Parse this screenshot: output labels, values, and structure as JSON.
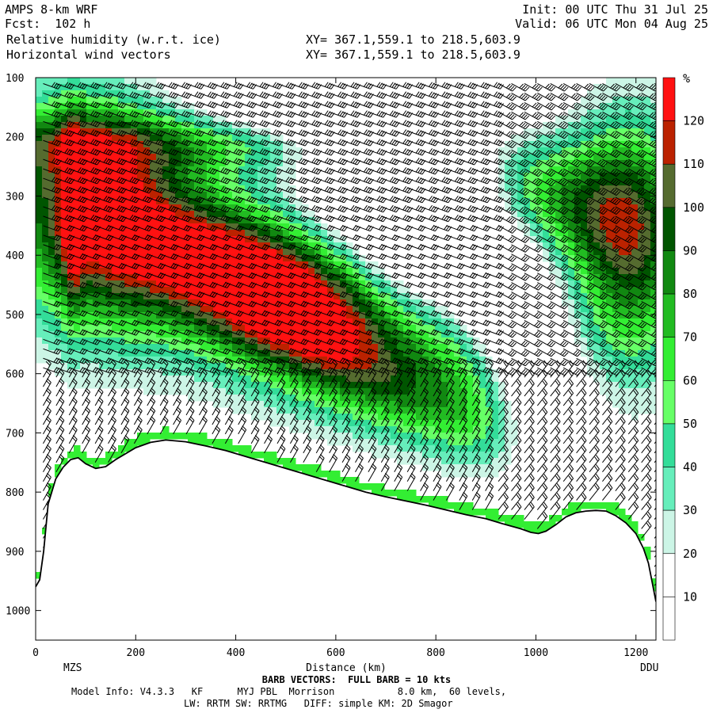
{
  "header": {
    "model": "AMPS 8-km WRF",
    "fcst": "Fcst:  102 h",
    "field1": "Relative humidity (w.r.t. ice)",
    "field2": "Horizontal wind vectors",
    "xy1": "XY= 367.1,559.1 to 218.5,603.9",
    "xy2": "XY= 367.1,559.1 to 218.5,603.9",
    "init": "Init: 00 UTC Thu 31 Jul 25",
    "valid": "Valid: 06 UTC Mon 04 Aug 25"
  },
  "footer": {
    "barb": "BARB VECTORS:  FULL BARB = 10 kts",
    "model_info": "Model Info: V4.3.3   KF      MYJ PBL  Morrison           8.0 km,  60 levels,",
    "physics": "LW: RRTM SW: RRTMG   DIFF: simple KM: 2D Smagor"
  },
  "chart_data": {
    "type": "heatmap",
    "xlabel": "Distance (km)",
    "ylabel": "",
    "x_range": [
      0,
      1240
    ],
    "y_range": [
      100,
      1050
    ],
    "y_inverted": true,
    "x_ticks": [
      "0",
      "200",
      "400",
      "600",
      "800",
      "1000",
      "1200"
    ],
    "x_tick_values": [
      0,
      200,
      400,
      600,
      800,
      1000,
      1200
    ],
    "y_ticks": [
      "100",
      "200",
      "300",
      "400",
      "500",
      "600",
      "700",
      "800",
      "900",
      "1000"
    ],
    "y_tick_values": [
      100,
      200,
      300,
      400,
      500,
      600,
      700,
      800,
      900,
      1000
    ],
    "start_station": "MZS",
    "end_station": "DDU",
    "colorbar": {
      "unit": "%",
      "levels": [
        "10",
        "20",
        "30",
        "40",
        "50",
        "60",
        "70",
        "80",
        "90",
        "100",
        "110",
        "120"
      ],
      "bins": [
        {
          "min": 0,
          "max": 20,
          "color": "#ffffff"
        },
        {
          "min": 20,
          "max": 30,
          "color": "#ffffff"
        },
        {
          "min": 30,
          "max": 40,
          "color": "#ccf5e6"
        },
        {
          "min": 40,
          "max": 50,
          "color": "#66eebb"
        },
        {
          "min": 50,
          "max": 60,
          "color": "#33dd99"
        },
        {
          "min": 60,
          "max": 70,
          "color": "#66ff66"
        },
        {
          "min": 70,
          "max": 80,
          "color": "#33ee33"
        },
        {
          "min": 80,
          "max": 90,
          "color": "#22bb22"
        },
        {
          "min": 90,
          "max": 100,
          "color": "#118811"
        },
        {
          "min": 100,
          "max": 110,
          "color": "#005500"
        },
        {
          "min": 110,
          "max": 120,
          "color": "#556b2f"
        },
        {
          "min": 120,
          "max": 130,
          "color": "#bb2200"
        },
        {
          "min": 130,
          "max": 140,
          "color": "#ff1111"
        }
      ]
    },
    "terrain": {
      "distance_km": [
        0,
        8,
        16,
        25,
        40,
        55,
        70,
        85,
        100,
        120,
        140,
        160,
        180,
        200,
        230,
        260,
        300,
        340,
        380,
        420,
        460,
        500,
        540,
        580,
        620,
        660,
        700,
        740,
        780,
        820,
        860,
        900,
        940,
        970,
        990,
        1005,
        1020,
        1040,
        1060,
        1080,
        1100,
        1120,
        1140,
        1160,
        1180,
        1200,
        1215,
        1225,
        1232,
        1240
      ],
      "pressure_hpa": [
        960,
        948,
        900,
        820,
        778,
        758,
        745,
        742,
        752,
        760,
        757,
        745,
        735,
        725,
        716,
        712,
        715,
        722,
        730,
        740,
        750,
        760,
        770,
        780,
        790,
        800,
        808,
        815,
        822,
        830,
        838,
        845,
        855,
        862,
        868,
        870,
        866,
        855,
        842,
        835,
        832,
        831,
        832,
        840,
        852,
        870,
        895,
        920,
        950,
        985
      ]
    }
  }
}
